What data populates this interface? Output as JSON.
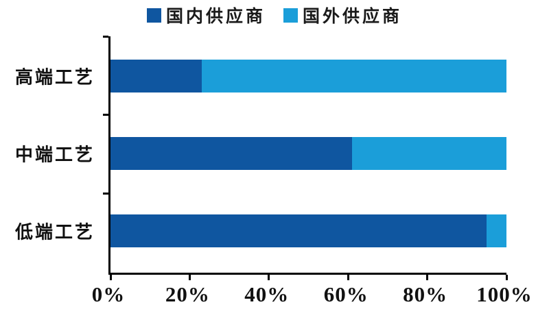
{
  "legend": {
    "items": [
      {
        "label": "国内供应商",
        "color": "#0F56A0"
      },
      {
        "label": "国外供应商",
        "color": "#1B9ED9"
      }
    ]
  },
  "chart_data": {
    "type": "bar",
    "orientation": "horizontal",
    "stacked": true,
    "unit": "percent",
    "categories": [
      "高端工艺",
      "中端工艺",
      "低端工艺"
    ],
    "series": [
      {
        "name": "国内供应商",
        "color": "#0F56A0",
        "values": [
          23,
          61,
          95
        ]
      },
      {
        "name": "国外供应商",
        "color": "#1B9ED9",
        "values": [
          77,
          39,
          5
        ]
      }
    ],
    "x_ticks": [
      "0%",
      "20%",
      "40%",
      "60%",
      "80%",
      "100%"
    ],
    "xlim": [
      0,
      100
    ],
    "grid": false,
    "legend_position": "top",
    "axis_color": "#000000",
    "background_color": "#ffffff"
  }
}
